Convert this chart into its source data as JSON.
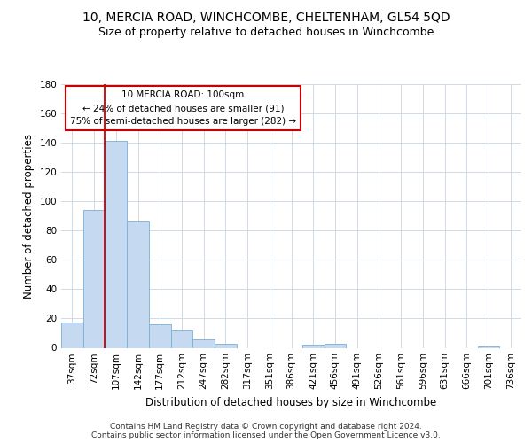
{
  "title1": "10, MERCIA ROAD, WINCHCOMBE, CHELTENHAM, GL54 5QD",
  "title2": "Size of property relative to detached houses in Winchcombe",
  "xlabel": "Distribution of detached houses by size in Winchcombe",
  "ylabel": "Number of detached properties",
  "categories": [
    "37sqm",
    "72sqm",
    "107sqm",
    "142sqm",
    "177sqm",
    "212sqm",
    "247sqm",
    "282sqm",
    "317sqm",
    "351sqm",
    "386sqm",
    "421sqm",
    "456sqm",
    "491sqm",
    "526sqm",
    "561sqm",
    "596sqm",
    "631sqm",
    "666sqm",
    "701sqm",
    "736sqm"
  ],
  "bar_heights": [
    17,
    94,
    141,
    86,
    16,
    12,
    6,
    3,
    0,
    0,
    0,
    2,
    3,
    0,
    0,
    0,
    0,
    0,
    0,
    1,
    0
  ],
  "bar_color": "#c5d9f0",
  "bar_edge_color": "#7aafd4",
  "grid_color": "#c8d4e0",
  "background_color": "#ffffff",
  "annotation_line1": "10 MERCIA ROAD: 100sqm",
  "annotation_line2": "← 24% of detached houses are smaller (91)",
  "annotation_line3": "75% of semi-detached houses are larger (282) →",
  "annotation_box_color": "#ffffff",
  "annotation_box_edge_color": "#cc0000",
  "vline_x": 2,
  "vline_color": "#cc0000",
  "ylim": [
    0,
    180
  ],
  "yticks": [
    0,
    20,
    40,
    60,
    80,
    100,
    120,
    140,
    160,
    180
  ],
  "footer_text": "Contains HM Land Registry data © Crown copyright and database right 2024.\nContains public sector information licensed under the Open Government Licence v3.0.",
  "title1_fontsize": 10,
  "title2_fontsize": 9,
  "xlabel_fontsize": 8.5,
  "ylabel_fontsize": 8.5,
  "tick_fontsize": 7.5,
  "annotation_fontsize": 7.5,
  "footer_fontsize": 6.5
}
